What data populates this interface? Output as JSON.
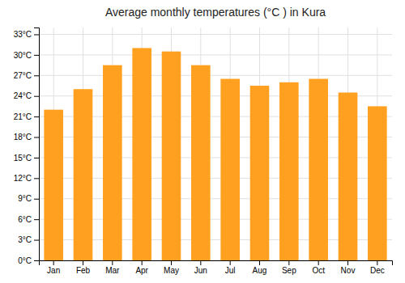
{
  "chart_data": {
    "type": "bar",
    "title": "Average monthly temperatures (°C ) in Kura",
    "categories": [
      "Jan",
      "Feb",
      "Mar",
      "Apr",
      "May",
      "Jun",
      "Jul",
      "Aug",
      "Sep",
      "Oct",
      "Nov",
      "Dec"
    ],
    "values": [
      22,
      25,
      28.5,
      31,
      30.5,
      28.5,
      26.5,
      25.5,
      26,
      26.5,
      24.5,
      22.5
    ],
    "color": "#FFA020",
    "ylim": [
      0,
      34
    ],
    "yticks": [
      {
        "value": 0,
        "label": "0°C"
      },
      {
        "value": 3,
        "label": "3°C"
      },
      {
        "value": 6,
        "label": "6°C"
      },
      {
        "value": 9,
        "label": "9°C"
      },
      {
        "value": 12,
        "label": "12°C"
      },
      {
        "value": 15,
        "label": "15°C"
      },
      {
        "value": 18,
        "label": "18°C"
      },
      {
        "value": 21,
        "label": "21°C"
      },
      {
        "value": 24,
        "label": "24°C"
      },
      {
        "value": 27,
        "label": "27°C"
      },
      {
        "value": 30,
        "label": "30°C"
      },
      {
        "value": 33,
        "label": "33°C"
      }
    ],
    "grid": true
  }
}
